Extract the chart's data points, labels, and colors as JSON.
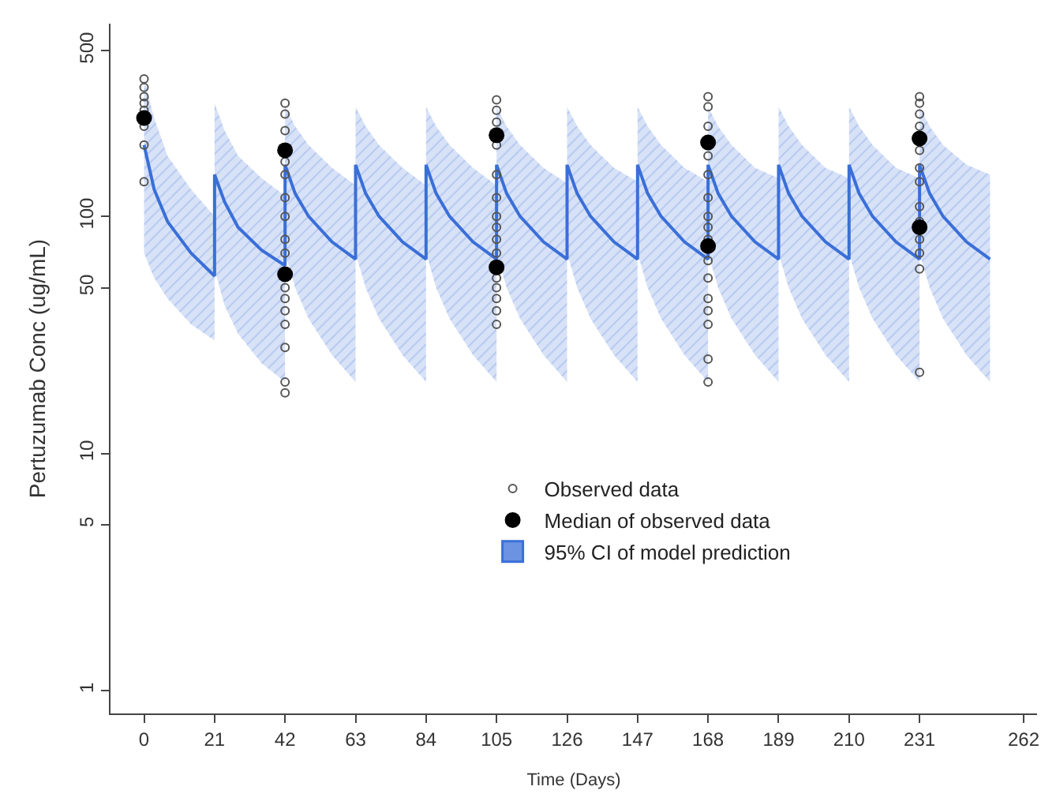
{
  "chart_data": {
    "type": "line",
    "xlabel": "Time (Days)",
    "ylabel": "Pertuzumab Conc (ug/mL)",
    "log": "y",
    "legend": "bottom right",
    "xlim": [
      -10,
      266
    ],
    "xticks": [
      0,
      21,
      42,
      63,
      84,
      105,
      126,
      147,
      168,
      189,
      210,
      231,
      262
    ],
    "ylim": [
      0.8,
      650
    ],
    "yticks": [
      1,
      5,
      10,
      50,
      100,
      500
    ],
    "series": [
      {
        "name": "95% CI of model prediction",
        "color": "#3a6fd8",
        "marker": "none",
        "x": [
          0,
          3,
          7,
          14,
          21,
          21,
          24,
          28,
          35,
          42,
          42,
          45,
          49,
          56,
          63,
          63,
          66,
          70,
          77,
          84,
          84,
          87,
          91,
          98,
          105,
          105,
          108,
          112,
          119,
          126,
          126,
          129,
          133,
          140,
          147,
          147,
          150,
          154,
          161,
          168,
          168,
          171,
          175,
          182,
          189,
          189,
          192,
          196,
          203,
          210,
          210,
          213,
          217,
          224,
          231,
          231,
          234,
          238,
          245,
          252
        ],
        "values": [
          200,
          130,
          95,
          70,
          56,
          150,
          115,
          90,
          72,
          62,
          165,
          125,
          100,
          78,
          66,
          165,
          125,
          100,
          78,
          66,
          165,
          125,
          100,
          78,
          66,
          165,
          125,
          100,
          78,
          66,
          165,
          125,
          100,
          78,
          66,
          165,
          125,
          100,
          78,
          66,
          165,
          125,
          100,
          78,
          66,
          165,
          125,
          100,
          78,
          66,
          165,
          125,
          100,
          78,
          66,
          165,
          125,
          100,
          78,
          66
        ],
        "lower": [
          70,
          55,
          45,
          35,
          30,
          60,
          42,
          32,
          24,
          20,
          70,
          50,
          37,
          26,
          20,
          70,
          50,
          37,
          26,
          20,
          70,
          50,
          37,
          26,
          20,
          70,
          50,
          37,
          26,
          20,
          70,
          50,
          37,
          26,
          20,
          70,
          50,
          37,
          26,
          20,
          70,
          50,
          37,
          26,
          20,
          70,
          50,
          37,
          26,
          20,
          70,
          50,
          37,
          26,
          20,
          70,
          50,
          37,
          26,
          20
        ],
        "upper": [
          380,
          260,
          180,
          130,
          100,
          300,
          230,
          180,
          145,
          122,
          290,
          240,
          200,
          160,
          135,
          290,
          240,
          200,
          160,
          135,
          290,
          240,
          200,
          160,
          135,
          290,
          240,
          200,
          160,
          138,
          290,
          240,
          200,
          160,
          140,
          290,
          240,
          200,
          160,
          140,
          290,
          240,
          200,
          160,
          145,
          290,
          240,
          200,
          160,
          145,
          290,
          240,
          200,
          160,
          145,
          290,
          240,
          200,
          165,
          150
        ]
      },
      {
        "type": "scatter",
        "name": "Observed data",
        "color": "#555555",
        "marker": "circle",
        "x": [
          0,
          0,
          0,
          0,
          0,
          0,
          0,
          0,
          42,
          42,
          42,
          42,
          42,
          42,
          42,
          42,
          42,
          42,
          42,
          42,
          42,
          42,
          42,
          42,
          105,
          105,
          105,
          105,
          105,
          105,
          105,
          105,
          105,
          105,
          105,
          105,
          105,
          105,
          105,
          168,
          168,
          168,
          168,
          168,
          168,
          168,
          168,
          168,
          168,
          168,
          168,
          168,
          168,
          168,
          168,
          231,
          231,
          231,
          231,
          231,
          231,
          231,
          231,
          231,
          231,
          231,
          231,
          231
        ],
        "values": [
          380,
          350,
          320,
          300,
          280,
          240,
          200,
          140,
          300,
          270,
          230,
          170,
          150,
          120,
          100,
          80,
          70,
          50,
          45,
          40,
          35,
          28,
          20,
          18,
          310,
          280,
          250,
          200,
          150,
          120,
          100,
          90,
          80,
          70,
          55,
          50,
          45,
          40,
          35,
          320,
          290,
          240,
          180,
          150,
          120,
          100,
          90,
          80,
          65,
          55,
          45,
          40,
          35,
          25,
          20,
          320,
          300,
          270,
          240,
          190,
          160,
          140,
          110,
          95,
          80,
          70,
          60,
          22
        ]
      },
      {
        "type": "scatter",
        "name": "Median of observed data",
        "color": "#000000",
        "marker": "circle",
        "x": [
          0,
          42,
          42,
          105,
          105,
          168,
          168,
          231,
          231
        ],
        "values": [
          260,
          190,
          57,
          220,
          61,
          205,
          75,
          213,
          90
        ]
      }
    ]
  }
}
